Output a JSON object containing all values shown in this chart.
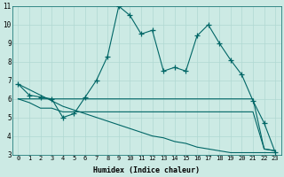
{
  "xlabel": "Humidex (Indice chaleur)",
  "x": [
    0,
    1,
    2,
    3,
    4,
    5,
    6,
    7,
    8,
    9,
    10,
    11,
    12,
    13,
    14,
    15,
    16,
    17,
    18,
    19,
    20,
    21,
    22,
    23
  ],
  "line1": [
    6.8,
    6.2,
    6.1,
    6.0,
    5.0,
    5.2,
    6.1,
    7.0,
    8.3,
    11.0,
    10.5,
    9.5,
    9.7,
    7.5,
    7.7,
    7.5,
    9.4,
    10.0,
    9.0,
    8.1,
    7.3,
    5.9,
    4.7,
    3.1
  ],
  "line_diag": [
    6.8,
    6.5,
    6.2,
    5.9,
    5.6,
    5.4,
    5.2,
    5.0,
    4.8,
    4.6,
    4.4,
    4.2,
    4.0,
    3.9,
    3.7,
    3.6,
    3.4,
    3.3,
    3.2,
    3.1,
    3.1,
    3.1,
    3.1,
    3.1
  ],
  "line_flat": [
    6.0,
    6.0,
    6.0,
    6.0,
    6.0,
    6.0,
    6.0,
    6.0,
    6.0,
    6.0,
    6.0,
    6.0,
    6.0,
    6.0,
    6.0,
    6.0,
    6.0,
    6.0,
    6.0,
    6.0,
    6.0,
    6.0,
    3.3,
    3.2
  ],
  "line_mid": [
    6.0,
    5.8,
    5.5,
    5.5,
    5.3,
    5.3,
    5.3,
    5.3,
    5.3,
    5.3,
    5.3,
    5.3,
    5.3,
    5.3,
    5.3,
    5.3,
    5.3,
    5.3,
    5.3,
    5.3,
    5.3,
    5.3,
    3.3,
    3.2
  ],
  "ylim": [
    3,
    11
  ],
  "xlim": [
    -0.5,
    23.5
  ],
  "yticks": [
    3,
    4,
    5,
    6,
    7,
    8,
    9,
    10,
    11
  ],
  "xticks": [
    0,
    1,
    2,
    3,
    4,
    5,
    6,
    7,
    8,
    9,
    10,
    11,
    12,
    13,
    14,
    15,
    16,
    17,
    18,
    19,
    20,
    21,
    22,
    23
  ],
  "bg_color": "#cceae4",
  "grid_color": "#b0d8d2",
  "line_color": "#006666",
  "marker": "+",
  "markersize": 4,
  "linewidth": 0.8
}
